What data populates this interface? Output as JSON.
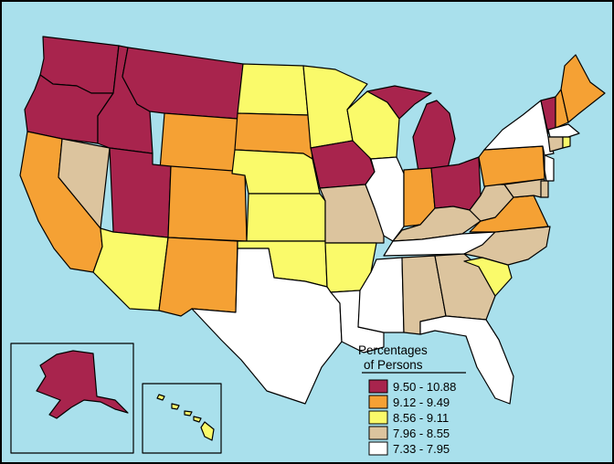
{
  "legend": {
    "title_line1": "Percentages",
    "title_line2": "of Persons",
    "classes": [
      {
        "label": "9.50 - 10.88",
        "color": "#a8244d"
      },
      {
        "label": "9.12 - 9.49",
        "color": "#f5a134"
      },
      {
        "label": "8.56 - 9.11",
        "color": "#fafa6a"
      },
      {
        "label": "7.96 - 8.55",
        "color": "#dcc49e"
      },
      {
        "label": "7.33 - 7.95",
        "color": "#ffffff"
      }
    ]
  },
  "colors": {
    "ocean": "#a9e0ec",
    "border": "#000000"
  },
  "states": {
    "WA": 0,
    "OR": 0,
    "ID": 0,
    "MT": 0,
    "UT": 0,
    "IA": 0,
    "MI": 0,
    "OH": 0,
    "VT": 0,
    "AK": 0,
    "CA": 1,
    "WY": 1,
    "SD": 1,
    "CO": 1,
    "NM": 1,
    "IN": 1,
    "PA": 1,
    "VA": 1,
    "ME": 1,
    "NH": 1,
    "ND": 2,
    "MN": 2,
    "WI": 2,
    "NE": 2,
    "KS": 2,
    "OK": 2,
    "AR": 2,
    "AZ": 2,
    "SC": 2,
    "HI": 2,
    "RI": 2,
    "NV": 3,
    "MO": 3,
    "KY": 3,
    "WV": 3,
    "NC": 3,
    "AL": 3,
    "GA": 3,
    "CT": 3,
    "MD": 3,
    "DE": 3,
    "TX": 4,
    "LA": 4,
    "MS": 4,
    "TN": 4,
    "IL": 4,
    "FL": 4,
    "NY": 4,
    "NJ": 4,
    "MA": 4
  }
}
